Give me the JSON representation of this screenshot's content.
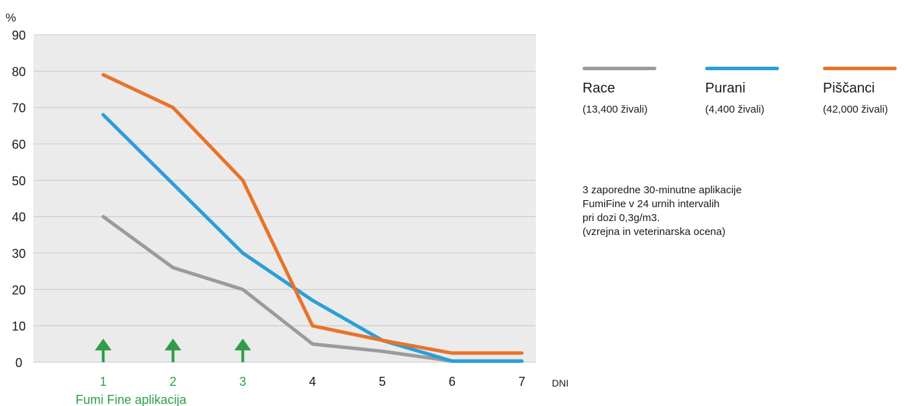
{
  "chart_data": {
    "type": "line",
    "title": "",
    "ylabel": "%",
    "xlabel": "DNI",
    "x": [
      1,
      2,
      3,
      4,
      5,
      6,
      7
    ],
    "ylim": [
      0,
      90
    ],
    "xlim": [
      0,
      7.2
    ],
    "yticks": [
      0,
      10,
      20,
      30,
      40,
      50,
      60,
      70,
      80,
      90
    ],
    "xticks": [
      1,
      2,
      3,
      4,
      5,
      6,
      7
    ],
    "grid": true,
    "series": [
      {
        "name": "Race",
        "sub": "(13,400 živali)",
        "color": "#9b9b9b",
        "values": [
          40,
          26,
          20,
          5,
          3,
          0.3,
          0.3
        ]
      },
      {
        "name": "Purani",
        "sub": "(4,400 živali)",
        "color": "#2a9fd8",
        "values": [
          68,
          49,
          30,
          17,
          6,
          0.3,
          0.3
        ]
      },
      {
        "name": "Piščanci",
        "sub": "(42,000 živali)",
        "color": "#e8732a",
        "values": [
          79,
          70,
          50,
          10,
          6,
          2.5,
          2.5
        ]
      }
    ],
    "annotation": {
      "label": "Fumi Fine aplikacija",
      "days": [
        1,
        2,
        3
      ],
      "color": "#2e9e48",
      "icon": "up-arrow-icon"
    },
    "axis_text_color": "#1a1a1a"
  },
  "legend_position": "right",
  "note": {
    "lines": [
      "3 zaporedne 30-minutne aplikacije",
      "FumiFine v 24 urnih intervalih",
      "pri dozi 0,3g/m3.",
      "(vzrejna in veterinarska ocena)"
    ]
  },
  "colors": {
    "plot_background": "#ebebeb",
    "grid": "#c8c8c8",
    "accent_green": "#2e9e48"
  }
}
